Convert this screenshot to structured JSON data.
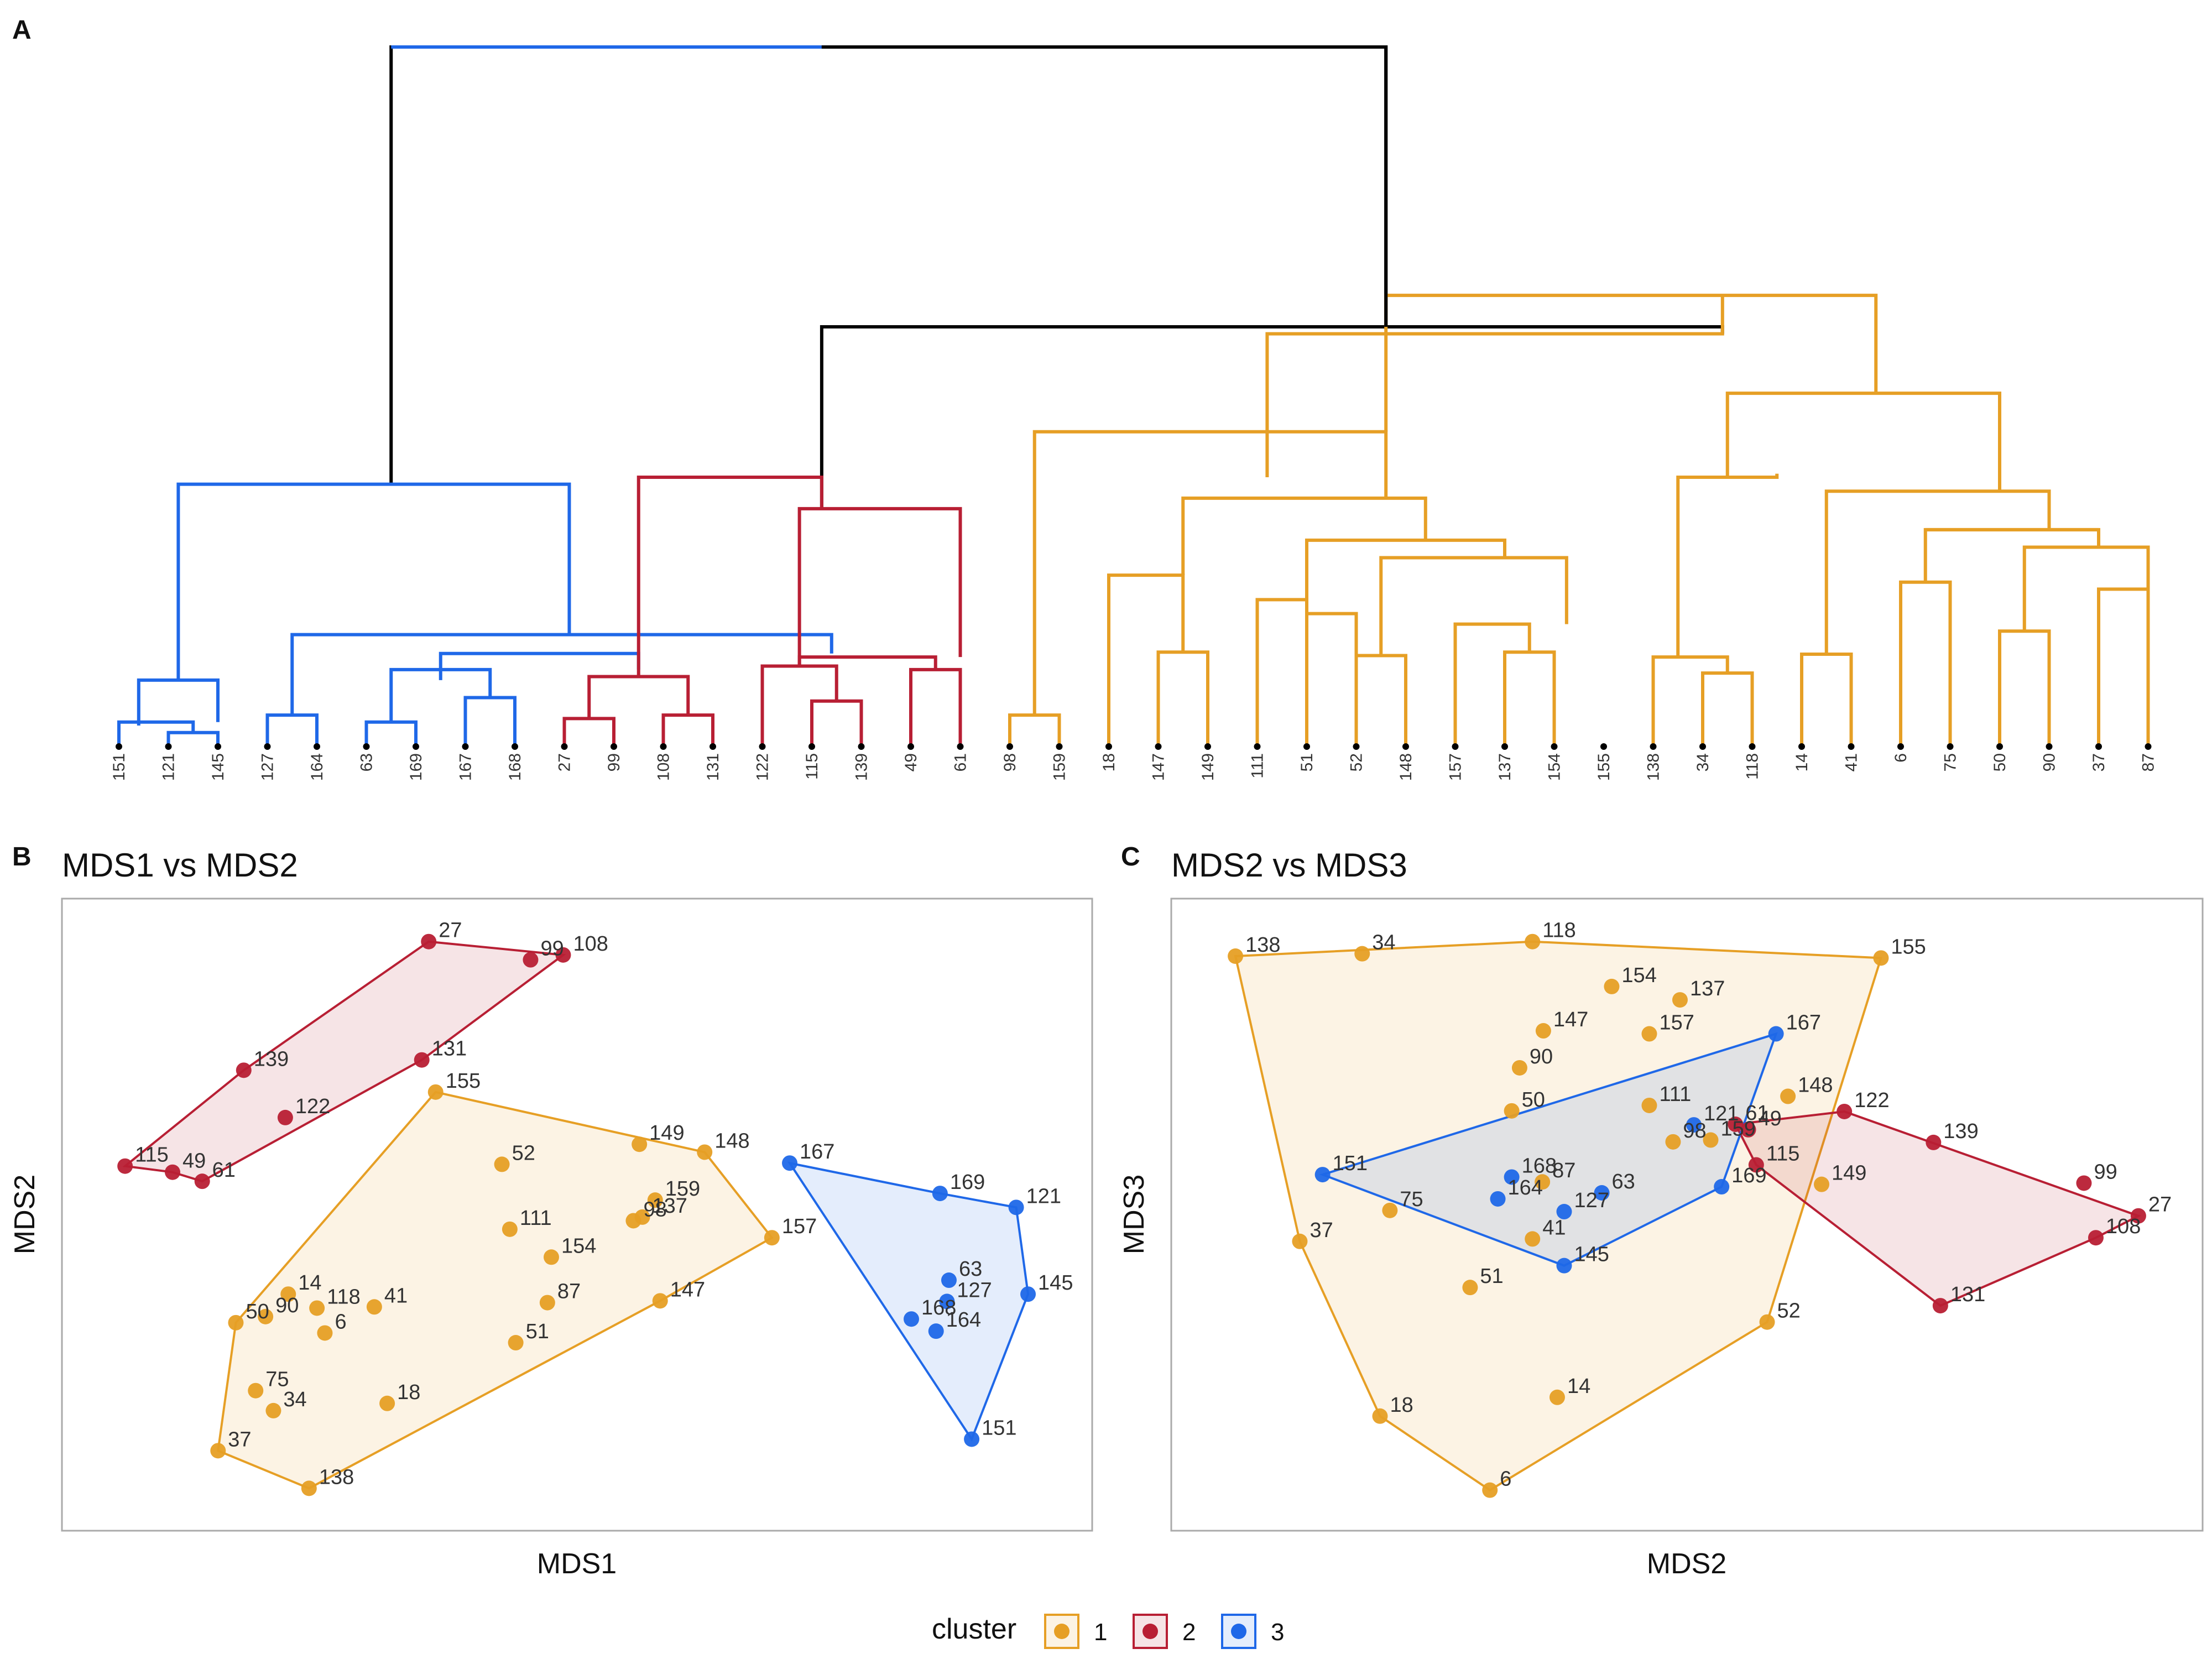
{
  "colors": {
    "cluster1": "#E69F25",
    "cluster2": "#B81F34",
    "cluster3": "#1F68E8",
    "root": "#000000",
    "axis_text": "#111111",
    "label_text": "#333333",
    "panel_border": "#AAAAAA",
    "leaf_dot": "#000000"
  },
  "panels": {
    "A": {
      "tag": "A"
    },
    "B": {
      "tag": "B",
      "title": "MDS1 vs MDS2",
      "xlabel": "MDS1",
      "ylabel": "MDS2"
    },
    "C": {
      "tag": "C",
      "title": "MDS2 vs MDS3",
      "xlabel": "MDS2",
      "ylabel": "MDS3"
    }
  },
  "legend": {
    "title": "cluster",
    "items": [
      {
        "label": "1",
        "color": "#E69F25"
      },
      {
        "label": "2",
        "color": "#B81F34"
      },
      {
        "label": "3",
        "color": "#1F68E8"
      }
    ]
  },
  "chart_data": [
    {
      "type": "dendrogram",
      "panel": "A",
      "leaves": [
        "151",
        "121",
        "145",
        "127",
        "164",
        "63",
        "169",
        "167",
        "168",
        "27",
        "99",
        "108",
        "131",
        "122",
        "115",
        "139",
        "49",
        "61",
        "98",
        "159",
        "18",
        "147",
        "149",
        "111",
        "51",
        "52",
        "148",
        "157",
        "137",
        "154",
        "155",
        "138",
        "34",
        "118",
        "14",
        "41",
        "6",
        "75",
        "50",
        "90",
        "37",
        "87"
      ],
      "height_range": [
        0,
        100
      ],
      "root_height": 100,
      "merges": [
        {
          "height": 100,
          "cluster": 0,
          "bl": 5.5,
          "br": 25.6,
          "hl": 37.5,
          "hr": 60.0
        },
        {
          "height": 60.0,
          "cluster": 0,
          "bl": 14.2,
          "br": 32.4,
          "hl": 34.0,
          "hr": 59.0
        },
        {
          "height": 59.0,
          "cluster": 1,
          "bl": 23.2,
          "br": 32.4,
          "hl": 38.5,
          "hr": 64.5
        },
        {
          "height": 37.5,
          "cluster": 3,
          "bl": 1.2,
          "br": 9.1,
          "hl": 9.5,
          "hr": 16.0
        },
        {
          "height": 16.0,
          "cluster": 3,
          "bl": 3.5,
          "br": 14.4,
          "hl": 4.5,
          "hr": 13.3
        },
        {
          "height": 13.3,
          "cluster": 3,
          "bl": 6.5,
          "br": 10.5,
          "hl": 9.5,
          "hr": 11.0
        },
        {
          "height": 11.0,
          "cluster": 3,
          "bl": 5.5,
          "br": 7.5,
          "hl": 3.5,
          "hr": 7.0
        },
        {
          "height": 9.5,
          "cluster": 3,
          "bl": 0.4,
          "br": 2.0,
          "hl": 3.0,
          "hr": 3.5
        },
        {
          "height": 4.5,
          "cluster": 3,
          "bl": 3.0,
          "br": 4.0,
          "hl": 0.0,
          "hr": 0.0
        },
        {
          "height": 3.5,
          "cluster": 3,
          "bl": 5.0,
          "br": 6.0,
          "hl": 0.0,
          "hr": 0.0
        },
        {
          "height": 7.0,
          "cluster": 3,
          "bl": 7.0,
          "br": 8.0,
          "hl": 0.0,
          "hr": 0.0
        },
        {
          "height": 3.5,
          "cluster": 3,
          "bl": 0.0,
          "br": 1.5,
          "hl": 0.0,
          "hr": 2.0
        },
        {
          "height": 2.0,
          "cluster": 3,
          "bl": 1.0,
          "br": 2.0,
          "hl": 0.0,
          "hr": 0.0
        },
        {
          "height": 38.5,
          "cluster": 2,
          "bl": 10.5,
          "br": 14.2,
          "hl": 10.0,
          "hr": 34.0
        },
        {
          "height": 10.0,
          "cluster": 2,
          "bl": 9.5,
          "br": 11.5,
          "hl": 4.0,
          "hr": 4.5
        },
        {
          "height": 4.0,
          "cluster": 2,
          "bl": 9.0,
          "br": 10.0,
          "hl": 0.0,
          "hr": 0.0
        },
        {
          "height": 4.5,
          "cluster": 2,
          "bl": 11.0,
          "br": 12.0,
          "hl": 0.0,
          "hr": 0.0
        },
        {
          "height": 34.0,
          "cluster": 2,
          "bl": 13.75,
          "br": 17.0,
          "hl": 11.5,
          "hr": 12.8
        },
        {
          "height": 12.8,
          "cluster": 2,
          "bl": 13.75,
          "br": 16.5,
          "hl": 11.5,
          "hr": 11.0
        },
        {
          "height": 11.5,
          "cluster": 2,
          "bl": 13.0,
          "br": 14.5,
          "hl": 0.0,
          "hr": 6.5
        },
        {
          "height": 6.5,
          "cluster": 2,
          "bl": 14.0,
          "br": 15.0,
          "hl": 0.0,
          "hr": 0.0
        },
        {
          "height": 11.0,
          "cluster": 2,
          "bl": 16.0,
          "br": 17.0,
          "hl": 0.0,
          "hr": 0.0
        },
        {
          "height": 64.5,
          "cluster": 1,
          "bl": 25.6,
          "br": 35.5,
          "hl": 45.0,
          "hr": 50.5
        },
        {
          "height": 45.0,
          "cluster": 1,
          "bl": 18.5,
          "br": 25.6,
          "hl": 4.5,
          "hr": 35.5
        },
        {
          "height": 4.5,
          "cluster": 1,
          "bl": 18.0,
          "br": 19.0,
          "hl": 0.0,
          "hr": 0.0
        },
        {
          "height": 35.5,
          "cluster": 1,
          "bl": 21.5,
          "br": 26.4,
          "hl": 24.5,
          "hr": 29.5
        },
        {
          "height": 24.5,
          "cluster": 1,
          "bl": 20.0,
          "br": 21.5,
          "hl": 0.0,
          "hr": 13.5
        },
        {
          "height": 13.5,
          "cluster": 1,
          "bl": 21.0,
          "br": 22.0,
          "hl": 0.0,
          "hr": 0.0
        },
        {
          "height": 29.5,
          "cluster": 1,
          "bl": 24.0,
          "br": 28.0,
          "hl": 21.0,
          "hr": 27.0
        },
        {
          "height": 21.0,
          "cluster": 1,
          "bl": 23.0,
          "br": 24.0,
          "hl": 0.0,
          "hr": 19.0
        },
        {
          "height": 19.0,
          "cluster": 1,
          "bl": 24.0,
          "br": 25.0,
          "hl": 0.0,
          "hr": 0.0
        },
        {
          "height": 27.0,
          "cluster": 1,
          "bl": 25.5,
          "br": 29.25,
          "hl": 13.0,
          "hr": 17.5
        },
        {
          "height": 13.0,
          "cluster": 1,
          "bl": 25.0,
          "br": 26.0,
          "hl": 0.0,
          "hr": 0.0
        },
        {
          "height": 17.5,
          "cluster": 1,
          "bl": 27.0,
          "br": 28.5,
          "hl": 0.0,
          "hr": 13.5
        },
        {
          "height": 13.5,
          "cluster": 1,
          "bl": 28.0,
          "br": 29.0,
          "hl": 0.0,
          "hr": 0.0
        },
        {
          "height": 50.5,
          "cluster": 1,
          "bl": 32.5,
          "br": 38.0,
          "hl": 38.5,
          "hr": 36.5
        },
        {
          "height": 38.5,
          "cluster": 1,
          "bl": 31.5,
          "br": 33.5,
          "hl": 12.8,
          "hr": 39.0
        },
        {
          "height": 12.8,
          "cluster": 1,
          "bl": 31.0,
          "br": 32.5,
          "hl": 0.0,
          "hr": 10.5
        },
        {
          "height": 10.5,
          "cluster": 1,
          "bl": 32.0,
          "br": 33.0,
          "hl": 0.0,
          "hr": 0.0
        },
        {
          "height": 36.5,
          "cluster": 1,
          "bl": 34.5,
          "br": 39.0,
          "hl": 13.2,
          "hr": 31.0
        },
        {
          "height": 13.2,
          "cluster": 1,
          "bl": 34.0,
          "br": 35.0,
          "hl": 0.0,
          "hr": 0.0
        },
        {
          "height": 31.0,
          "cluster": 1,
          "bl": 36.5,
          "br": 40.0,
          "hl": 23.5,
          "hr": 28.5
        },
        {
          "height": 23.5,
          "cluster": 1,
          "bl": 36.0,
          "br": 37.0,
          "hl": 0.0,
          "hr": 0.0
        },
        {
          "height": 28.5,
          "cluster": 1,
          "bl": 38.5,
          "br": 41.0,
          "hl": 16.5,
          "hr": 22.5
        },
        {
          "height": 16.5,
          "cluster": 1,
          "bl": 38.0,
          "br": 39.0,
          "hl": 0.0,
          "hr": 0.0
        },
        {
          "height": 22.5,
          "cluster": 1,
          "bl": 40.0,
          "br": 41.0,
          "hl": 0.0,
          "hr": 0.0
        },
        {
          "height": 31.0,
          "cluster": 1,
          "bl": 36.5,
          "br": 40.0,
          "hl": 31.0,
          "hr": 31.0
        }
      ]
    },
    {
      "type": "scatter",
      "panel": "B",
      "title": "MDS1 vs MDS2",
      "xlabel": "MDS1",
      "ylabel": "MDS2",
      "xlim": [
        0,
        100
      ],
      "ylim": [
        0,
        100
      ],
      "hull_order": {
        "1": [
          "155",
          "148",
          "157",
          "147",
          "138",
          "37",
          "50"
        ],
        "2": [
          "27",
          "108",
          "131",
          "61",
          "49",
          "115",
          "139"
        ],
        "3": [
          "167",
          "169",
          "121",
          "145",
          "151"
        ]
      },
      "points": [
        {
          "id": "27",
          "cluster": 2,
          "x": 35.0,
          "y": 95.0
        },
        {
          "id": "99",
          "cluster": 2,
          "x": 45.3,
          "y": 92.0
        },
        {
          "id": "108",
          "cluster": 2,
          "x": 48.6,
          "y": 92.8
        },
        {
          "id": "131",
          "cluster": 2,
          "x": 34.3,
          "y": 75.5
        },
        {
          "id": "139",
          "cluster": 2,
          "x": 16.3,
          "y": 73.8
        },
        {
          "id": "122",
          "cluster": 2,
          "x": 20.5,
          "y": 66.0
        },
        {
          "id": "115",
          "cluster": 2,
          "x": 4.3,
          "y": 58.0
        },
        {
          "id": "49",
          "cluster": 2,
          "x": 9.1,
          "y": 57.0
        },
        {
          "id": "61",
          "cluster": 2,
          "x": 12.1,
          "y": 55.5
        },
        {
          "id": "155",
          "cluster": 1,
          "x": 35.7,
          "y": 70.2
        },
        {
          "id": "52",
          "cluster": 1,
          "x": 42.4,
          "y": 58.3
        },
        {
          "id": "149",
          "cluster": 1,
          "x": 56.3,
          "y": 61.6
        },
        {
          "id": "148",
          "cluster": 1,
          "x": 62.9,
          "y": 60.3
        },
        {
          "id": "159",
          "cluster": 1,
          "x": 57.9,
          "y": 52.4
        },
        {
          "id": "137",
          "cluster": 1,
          "x": 56.6,
          "y": 49.6
        },
        {
          "id": "98",
          "cluster": 1,
          "x": 55.7,
          "y": 49.0
        },
        {
          "id": "111",
          "cluster": 1,
          "x": 43.2,
          "y": 47.6
        },
        {
          "id": "154",
          "cluster": 1,
          "x": 47.4,
          "y": 43.0
        },
        {
          "id": "157",
          "cluster": 1,
          "x": 69.7,
          "y": 46.2
        },
        {
          "id": "147",
          "cluster": 1,
          "x": 58.4,
          "y": 35.8
        },
        {
          "id": "87",
          "cluster": 1,
          "x": 47.0,
          "y": 35.5
        },
        {
          "id": "51",
          "cluster": 1,
          "x": 43.8,
          "y": 28.9
        },
        {
          "id": "14",
          "cluster": 1,
          "x": 20.8,
          "y": 36.9
        },
        {
          "id": "90",
          "cluster": 1,
          "x": 18.5,
          "y": 33.2
        },
        {
          "id": "118",
          "cluster": 1,
          "x": 23.7,
          "y": 34.6
        },
        {
          "id": "41",
          "cluster": 1,
          "x": 29.5,
          "y": 34.8
        },
        {
          "id": "6",
          "cluster": 1,
          "x": 24.5,
          "y": 30.5
        },
        {
          "id": "50",
          "cluster": 1,
          "x": 15.5,
          "y": 32.2
        },
        {
          "id": "75",
          "cluster": 1,
          "x": 17.5,
          "y": 21.0
        },
        {
          "id": "34",
          "cluster": 1,
          "x": 19.3,
          "y": 17.7
        },
        {
          "id": "18",
          "cluster": 1,
          "x": 30.8,
          "y": 18.9
        },
        {
          "id": "37",
          "cluster": 1,
          "x": 13.7,
          "y": 11.1
        },
        {
          "id": "138",
          "cluster": 1,
          "x": 22.9,
          "y": 4.9
        },
        {
          "id": "167",
          "cluster": 3,
          "x": 71.5,
          "y": 58.5
        },
        {
          "id": "169",
          "cluster": 3,
          "x": 86.7,
          "y": 53.5
        },
        {
          "id": "121",
          "cluster": 3,
          "x": 94.4,
          "y": 51.2
        },
        {
          "id": "63",
          "cluster": 3,
          "x": 87.6,
          "y": 39.2
        },
        {
          "id": "145",
          "cluster": 3,
          "x": 95.6,
          "y": 36.9
        },
        {
          "id": "127",
          "cluster": 3,
          "x": 87.4,
          "y": 35.7
        },
        {
          "id": "168",
          "cluster": 3,
          "x": 83.8,
          "y": 32.8
        },
        {
          "id": "164",
          "cluster": 3,
          "x": 86.3,
          "y": 30.8
        },
        {
          "id": "151",
          "cluster": 3,
          "x": 89.9,
          "y": 13.0
        }
      ]
    },
    {
      "type": "scatter",
      "panel": "C",
      "title": "MDS2 vs MDS3",
      "xlabel": "MDS2",
      "ylabel": "MDS3",
      "xlim": [
        0,
        100
      ],
      "ylim": [
        0,
        100
      ],
      "hull_order": {
        "1": [
          "138",
          "118",
          "155",
          "52",
          "6",
          "18",
          "37"
        ],
        "2": [
          "61",
          "122",
          "27",
          "108",
          "131",
          "115"
        ],
        "3": [
          "151",
          "167",
          "169",
          "145"
        ]
      },
      "points": [
        {
          "id": "138",
          "cluster": 1,
          "x": 4.4,
          "y": 92.6
        },
        {
          "id": "34",
          "cluster": 1,
          "x": 17.2,
          "y": 93.0
        },
        {
          "id": "118",
          "cluster": 1,
          "x": 34.4,
          "y": 95.0
        },
        {
          "id": "155",
          "cluster": 1,
          "x": 69.6,
          "y": 92.3
        },
        {
          "id": "154",
          "cluster": 1,
          "x": 42.4,
          "y": 87.6
        },
        {
          "id": "137",
          "cluster": 1,
          "x": 49.3,
          "y": 85.4
        },
        {
          "id": "147",
          "cluster": 1,
          "x": 35.5,
          "y": 80.3
        },
        {
          "id": "157",
          "cluster": 1,
          "x": 46.2,
          "y": 79.8
        },
        {
          "id": "90",
          "cluster": 1,
          "x": 33.1,
          "y": 74.2
        },
        {
          "id": "148",
          "cluster": 1,
          "x": 60.2,
          "y": 69.5
        },
        {
          "id": "50",
          "cluster": 1,
          "x": 32.3,
          "y": 67.1
        },
        {
          "id": "111",
          "cluster": 1,
          "x": 46.2,
          "y": 68.0
        },
        {
          "id": "98",
          "cluster": 1,
          "x": 48.6,
          "y": 62.0
        },
        {
          "id": "159",
          "cluster": 1,
          "x": 52.4,
          "y": 62.3
        },
        {
          "id": "149",
          "cluster": 1,
          "x": 63.6,
          "y": 55.0
        },
        {
          "id": "87",
          "cluster": 1,
          "x": 35.4,
          "y": 55.4
        },
        {
          "id": "41",
          "cluster": 1,
          "x": 34.4,
          "y": 46.0
        },
        {
          "id": "75",
          "cluster": 1,
          "x": 20.0,
          "y": 50.7
        },
        {
          "id": "37",
          "cluster": 1,
          "x": 10.9,
          "y": 45.6
        },
        {
          "id": "51",
          "cluster": 1,
          "x": 28.1,
          "y": 38.0
        },
        {
          "id": "52",
          "cluster": 1,
          "x": 58.1,
          "y": 32.3
        },
        {
          "id": "14",
          "cluster": 1,
          "x": 36.9,
          "y": 19.9
        },
        {
          "id": "18",
          "cluster": 1,
          "x": 19.0,
          "y": 16.8
        },
        {
          "id": "6",
          "cluster": 1,
          "x": 30.1,
          "y": 4.6
        },
        {
          "id": "167",
          "cluster": 3,
          "x": 59.0,
          "y": 79.8
        },
        {
          "id": "121",
          "cluster": 3,
          "x": 50.7,
          "y": 64.8
        },
        {
          "id": "168",
          "cluster": 3,
          "x": 32.3,
          "y": 56.2
        },
        {
          "id": "63",
          "cluster": 3,
          "x": 41.4,
          "y": 53.6
        },
        {
          "id": "164",
          "cluster": 3,
          "x": 30.9,
          "y": 52.6
        },
        {
          "id": "127",
          "cluster": 3,
          "x": 37.6,
          "y": 50.5
        },
        {
          "id": "169",
          "cluster": 3,
          "x": 53.5,
          "y": 54.6
        },
        {
          "id": "151",
          "cluster": 3,
          "x": 13.2,
          "y": 56.6
        },
        {
          "id": "145",
          "cluster": 3,
          "x": 37.6,
          "y": 41.6
        },
        {
          "id": "61",
          "cluster": 2,
          "x": 54.9,
          "y": 64.9
        },
        {
          "id": "49",
          "cluster": 2,
          "x": 56.2,
          "y": 64.0
        },
        {
          "id": "122",
          "cluster": 2,
          "x": 65.9,
          "y": 67.0
        },
        {
          "id": "139",
          "cluster": 2,
          "x": 74.9,
          "y": 61.9
        },
        {
          "id": "99",
          "cluster": 2,
          "x": 90.1,
          "y": 55.2
        },
        {
          "id": "27",
          "cluster": 2,
          "x": 95.6,
          "y": 49.8
        },
        {
          "id": "108",
          "cluster": 2,
          "x": 91.3,
          "y": 46.2
        },
        {
          "id": "131",
          "cluster": 2,
          "x": 75.6,
          "y": 35.0
        },
        {
          "id": "115",
          "cluster": 2,
          "x": 57.0,
          "y": 58.2
        }
      ]
    }
  ]
}
